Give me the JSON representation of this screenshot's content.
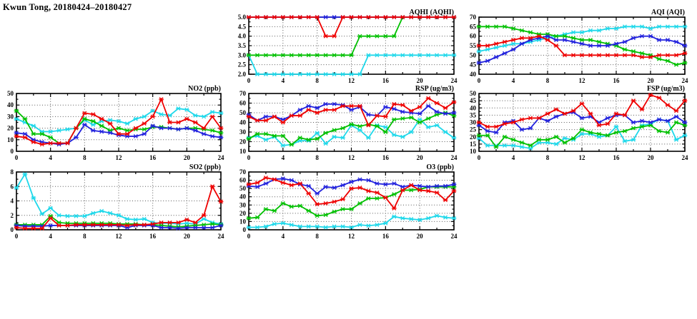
{
  "page_title": "Kwun Tong, 20180424–20180427",
  "colors": {
    "red": "#ee0000",
    "blue": "#2222dd",
    "green": "#00c000",
    "cyan": "#1fd8ea"
  },
  "chart_data": [
    {
      "key": "aqhi",
      "type": "line",
      "title": "AQHI (AQHI)",
      "xlabel": "",
      "ylabel": "",
      "xlim": [
        0,
        24
      ],
      "xticks": [
        0,
        4,
        8,
        12,
        16,
        20,
        24
      ],
      "ylim": [
        2,
        5
      ],
      "yticks": [
        2,
        2.5,
        3,
        3.5,
        4,
        4.5,
        5
      ],
      "ydecimals": 1,
      "grid": true,
      "legend": "none",
      "series": [
        {
          "name": "series-cyan",
          "color": "cyan",
          "values": [
            3,
            2,
            2,
            2,
            2,
            2,
            2,
            2,
            2,
            2,
            2,
            2,
            2,
            2,
            3,
            3,
            3,
            3,
            3,
            3,
            3,
            3,
            3,
            3,
            3
          ]
        },
        {
          "name": "series-green",
          "color": "green",
          "values": [
            3,
            3,
            3,
            3,
            3,
            3,
            3,
            3,
            3,
            3,
            3,
            3,
            3,
            4,
            4,
            4,
            4,
            4,
            5,
            5,
            5,
            5,
            5,
            5,
            5
          ]
        },
        {
          "name": "series-blue",
          "color": "blue",
          "values": [
            5,
            5,
            5,
            5,
            5,
            5,
            5,
            5,
            5,
            5,
            5,
            5,
            5,
            5,
            5,
            5,
            5,
            5,
            5,
            5,
            5,
            5,
            5,
            5,
            5
          ]
        },
        {
          "name": "series-red",
          "color": "red",
          "values": [
            5,
            5,
            5,
            5,
            5,
            5,
            5,
            5,
            5,
            4,
            4,
            5,
            5,
            5,
            5,
            5,
            5,
            5,
            5,
            5,
            5,
            5,
            5,
            5,
            5
          ]
        }
      ]
    },
    {
      "key": "aqi",
      "type": "line",
      "title": "AQI (AQI)",
      "xlabel": "",
      "ylabel": "",
      "xlim": [
        0,
        24
      ],
      "xticks": [
        0,
        4,
        8,
        12,
        16,
        20,
        24
      ],
      "ylim": [
        40,
        70
      ],
      "yticks": [
        40,
        45,
        50,
        55,
        60,
        65,
        70
      ],
      "ydecimals": 0,
      "grid": true,
      "legend": "none",
      "series": [
        {
          "name": "series-cyan",
          "color": "cyan",
          "values": [
            52,
            53,
            54,
            55,
            56,
            56,
            57,
            58,
            59,
            60,
            61,
            62,
            62,
            63,
            63,
            64,
            64,
            65,
            65,
            65,
            64,
            65,
            65,
            65,
            65
          ]
        },
        {
          "name": "series-green",
          "color": "green",
          "values": [
            65,
            65,
            65,
            65,
            64,
            63,
            62,
            61,
            61,
            60,
            60,
            59,
            58,
            58,
            57,
            56,
            55,
            53,
            52,
            51,
            50,
            48,
            47,
            45,
            46
          ]
        },
        {
          "name": "series-blue",
          "color": "blue",
          "values": [
            46,
            47,
            49,
            51,
            53,
            56,
            58,
            59,
            60,
            58,
            58,
            57,
            56,
            55,
            55,
            55,
            56,
            57,
            59,
            60,
            60,
            58,
            58,
            57,
            55
          ]
        },
        {
          "name": "series-red",
          "color": "red",
          "values": [
            55,
            55,
            56,
            57,
            58,
            59,
            59,
            60,
            58,
            55,
            50,
            50,
            50,
            50,
            50,
            50,
            50,
            50,
            50,
            49,
            49,
            50,
            50,
            50,
            51
          ]
        }
      ]
    },
    {
      "key": "no2",
      "type": "line",
      "title": "NO2 (ppb)",
      "xlabel": "",
      "ylabel": "",
      "xlim": [
        0,
        24
      ],
      "xticks": [
        0,
        4,
        8,
        12,
        16,
        20,
        24
      ],
      "ylim": [
        0,
        50
      ],
      "yticks": [
        0,
        10,
        20,
        30,
        40,
        50
      ],
      "ydecimals": 0,
      "grid": true,
      "legend": "none",
      "series": [
        {
          "name": "series-cyan",
          "color": "cyan",
          "values": [
            28,
            25,
            22,
            17,
            17,
            18,
            19,
            20,
            27,
            23,
            26,
            27,
            26,
            24,
            28,
            30,
            35,
            32,
            31,
            37,
            36,
            31,
            30,
            34,
            33
          ]
        },
        {
          "name": "series-green",
          "color": "green",
          "values": [
            35,
            28,
            15,
            15,
            12,
            7,
            7,
            20,
            28,
            26,
            22,
            18,
            20,
            18,
            19,
            19,
            21,
            21,
            20,
            19,
            20,
            20,
            19,
            18,
            16
          ]
        },
        {
          "name": "series-blue",
          "color": "blue",
          "values": [
            16,
            15,
            10,
            8,
            7,
            6,
            7,
            12,
            23,
            18,
            17,
            16,
            14,
            13,
            13,
            15,
            22,
            20,
            20,
            19,
            20,
            18,
            15,
            13,
            12
          ]
        },
        {
          "name": "series-red",
          "color": "red",
          "values": [
            13,
            12,
            8,
            6,
            7,
            7,
            7,
            20,
            33,
            32,
            28,
            24,
            15,
            15,
            20,
            24,
            30,
            45,
            25,
            25,
            28,
            25,
            20,
            30,
            20
          ]
        }
      ]
    },
    {
      "key": "rsp",
      "type": "line",
      "title": "RSP (ug/m3)",
      "xlabel": "",
      "ylabel": "",
      "xlim": [
        0,
        24
      ],
      "xticks": [
        0,
        4,
        8,
        12,
        16,
        20,
        24
      ],
      "ylim": [
        10,
        70
      ],
      "yticks": [
        10,
        20,
        30,
        40,
        50,
        60,
        70
      ],
      "ydecimals": 0,
      "grid": true,
      "legend": "none",
      "series": [
        {
          "name": "series-cyan",
          "color": "cyan",
          "values": [
            24,
            26,
            22,
            25,
            16,
            17,
            21,
            21,
            29,
            18,
            25,
            24,
            37,
            32,
            24,
            37,
            35,
            27,
            25,
            30,
            43,
            35,
            37,
            30,
            24
          ]
        },
        {
          "name": "series-green",
          "color": "green",
          "values": [
            23,
            28,
            28,
            26,
            26,
            17,
            24,
            22,
            23,
            29,
            32,
            34,
            38,
            36,
            38,
            36,
            30,
            43,
            44,
            45,
            40,
            44,
            48,
            50,
            47
          ]
        },
        {
          "name": "series-blue",
          "color": "blue",
          "values": [
            48,
            42,
            46,
            46,
            43,
            47,
            53,
            57,
            55,
            59,
            59,
            58,
            53,
            56,
            48,
            47,
            56,
            54,
            51,
            50,
            49,
            57,
            51,
            49,
            50
          ]
        },
        {
          "name": "series-red",
          "color": "red",
          "values": [
            46,
            42,
            42,
            46,
            40,
            47,
            47,
            53,
            50,
            53,
            53,
            57,
            57,
            57,
            37,
            47,
            46,
            59,
            58,
            52,
            56,
            65,
            60,
            55,
            61
          ]
        }
      ]
    },
    {
      "key": "fsp",
      "type": "line",
      "title": "FSP (ug/m3)",
      "xlabel": "",
      "ylabel": "",
      "xlim": [
        0,
        24
      ],
      "xticks": [
        0,
        4,
        8,
        12,
        16,
        20,
        24
      ],
      "ylim": [
        10,
        50
      ],
      "yticks": [
        10,
        15,
        20,
        25,
        30,
        35,
        40,
        45,
        50
      ],
      "ydecimals": 0,
      "grid": true,
      "legend": "none",
      "series": [
        {
          "name": "series-cyan",
          "color": "cyan",
          "values": [
            19,
            14,
            14,
            14,
            14,
            13,
            12,
            16,
            16,
            15,
            19,
            18,
            22,
            22,
            20,
            21,
            27,
            17,
            18,
            28,
            29,
            32,
            31,
            18,
            21
          ]
        },
        {
          "name": "series-green",
          "color": "green",
          "values": [
            21,
            21,
            13,
            20,
            18,
            16,
            14,
            18,
            18,
            20,
            16,
            19,
            25,
            23,
            22,
            21,
            23,
            24,
            26,
            27,
            28,
            24,
            23,
            30,
            28
          ]
        },
        {
          "name": "series-blue",
          "color": "blue",
          "values": [
            28,
            24,
            23,
            30,
            31,
            25,
            26,
            33,
            31,
            34,
            36,
            37,
            33,
            34,
            30,
            33,
            35,
            35,
            30,
            31,
            30,
            32,
            31,
            34,
            30
          ]
        },
        {
          "name": "series-red",
          "color": "red",
          "values": [
            30,
            27,
            27,
            29,
            30,
            32,
            33,
            33,
            36,
            39,
            36,
            38,
            43,
            36,
            28,
            29,
            36,
            35,
            45,
            39,
            49,
            47,
            42,
            38,
            45
          ]
        }
      ]
    },
    {
      "key": "so2",
      "type": "line",
      "title": "SO2 (ppb)",
      "xlabel": "",
      "ylabel": "",
      "xlim": [
        0,
        24
      ],
      "xticks": [
        0,
        4,
        8,
        12,
        16,
        20,
        24
      ],
      "ylim": [
        0,
        8
      ],
      "yticks": [
        0,
        2,
        4,
        6,
        8
      ],
      "ydecimals": 0,
      "grid": true,
      "legend": "none",
      "series": [
        {
          "name": "series-cyan",
          "color": "cyan",
          "values": [
            5.8,
            7.7,
            4.4,
            2.2,
            3.0,
            2.0,
            1.9,
            1.9,
            1.9,
            2.3,
            2.6,
            2.3,
            2.0,
            1.5,
            1.4,
            1.5,
            1.0,
            0.9,
            0.9,
            0.8,
            0.9,
            0.8,
            1.5,
            1.0,
            0.8
          ]
        },
        {
          "name": "series-green",
          "color": "green",
          "values": [
            0.7,
            0.7,
            0.7,
            0.7,
            1.9,
            1.0,
            0.9,
            0.9,
            0.9,
            0.9,
            0.9,
            0.9,
            0.8,
            0.8,
            0.8,
            0.7,
            0.7,
            0.6,
            0.5,
            0.4,
            0.5,
            0.6,
            0.7,
            0.8,
            0.7
          ]
        },
        {
          "name": "series-blue",
          "color": "blue",
          "values": [
            0.6,
            0.5,
            0.5,
            0.5,
            0.6,
            0.6,
            0.6,
            0.6,
            0.6,
            0.6,
            0.6,
            0.6,
            0.6,
            0.3,
            0.6,
            0.6,
            0.6,
            0.3,
            0.3,
            0.2,
            0.3,
            0.3,
            0.3,
            0.3,
            0.6
          ]
        },
        {
          "name": "series-red",
          "color": "red",
          "values": [
            0.3,
            0.2,
            0.2,
            0.2,
            1.6,
            0.6,
            0.6,
            0.7,
            0.7,
            0.7,
            0.7,
            0.7,
            0.7,
            0.6,
            0.7,
            0.7,
            0.8,
            1.0,
            1.0,
            1.0,
            1.4,
            1.0,
            2.0,
            6.0,
            3.9
          ]
        }
      ]
    },
    {
      "key": "o3",
      "type": "line",
      "title": "O3 (ppb)",
      "xlabel": "",
      "ylabel": "",
      "xlim": [
        0,
        24
      ],
      "xticks": [
        0,
        4,
        8,
        12,
        16,
        20,
        24
      ],
      "ylim": [
        0,
        70
      ],
      "yticks": [
        0,
        10,
        20,
        30,
        40,
        50,
        60,
        70
      ],
      "ydecimals": 0,
      "grid": true,
      "legend": "none",
      "series": [
        {
          "name": "series-cyan",
          "color": "cyan",
          "values": [
            3,
            3,
            4,
            7,
            8,
            6,
            4,
            4,
            4,
            3,
            4,
            4,
            3,
            6,
            5,
            6,
            8,
            16,
            14,
            13,
            12,
            14,
            17,
            15,
            14
          ]
        },
        {
          "name": "series-green",
          "color": "green",
          "values": [
            14,
            15,
            25,
            23,
            32,
            28,
            29,
            23,
            17,
            18,
            22,
            25,
            25,
            32,
            38,
            38,
            39,
            43,
            48,
            48,
            49,
            52,
            52,
            52,
            52
          ]
        },
        {
          "name": "series-blue",
          "color": "blue",
          "values": [
            53,
            52,
            56,
            61,
            62,
            60,
            55,
            53,
            44,
            52,
            51,
            54,
            58,
            61,
            60,
            56,
            55,
            56,
            52,
            54,
            53,
            52,
            53,
            53,
            55
          ]
        },
        {
          "name": "series-red",
          "color": "red",
          "values": [
            55,
            57,
            63,
            61,
            57,
            54,
            56,
            44,
            31,
            32,
            34,
            37,
            50,
            51,
            47,
            45,
            39,
            26,
            48,
            54,
            48,
            47,
            45,
            36,
            47
          ]
        }
      ]
    }
  ]
}
